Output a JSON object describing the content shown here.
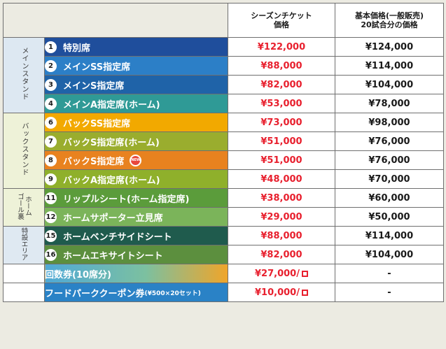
{
  "header": {
    "season_ticket": [
      "シーズンチケット",
      "価格"
    ],
    "base_price": [
      "基本価格(一般販売)",
      "20試合分の価格"
    ]
  },
  "groups": {
    "main": "メインスタンド",
    "back": "バックスタンド",
    "goal": "ホーム\nゴール裏",
    "tokusetsu": "特設エリア"
  },
  "rows": [
    {
      "num": "1",
      "seat": "特別席",
      "season": "¥122,000",
      "base": "¥124,000"
    },
    {
      "num": "2",
      "seat": "メインSS指定席",
      "season": "¥88,000",
      "base": "¥114,000"
    },
    {
      "num": "3",
      "seat": "メインS指定席",
      "season": "¥82,000",
      "base": "¥104,000"
    },
    {
      "num": "4",
      "seat": "メインA指定席(ホーム)",
      "season": "¥53,000",
      "base": "¥78,000"
    },
    {
      "num": "6",
      "seat": "バックSS指定席",
      "season": "¥73,000",
      "base": "¥98,000"
    },
    {
      "num": "7",
      "seat": "バックS指定席(ホーム)",
      "season": "¥51,000",
      "base": "¥76,000"
    },
    {
      "num": "8",
      "seat": "バックS指定席",
      "season": "¥51,000",
      "base": "¥76,000",
      "badge": "NEW"
    },
    {
      "num": "9",
      "seat": "バックA指定席(ホーム)",
      "season": "¥48,000",
      "base": "¥70,000"
    },
    {
      "num": "11",
      "seat": "リップルシート(ホーム指定席)",
      "season": "¥38,000",
      "base": "¥60,000"
    },
    {
      "num": "12",
      "seat": "ホームサポーター立見席",
      "season": "¥29,000",
      "base": "¥50,000"
    },
    {
      "num": "15",
      "seat": "ホームベンチサイドシート",
      "season": "¥88,000",
      "base": "¥114,000"
    },
    {
      "num": "16",
      "seat": "ホームエキサイトシート",
      "season": "¥82,000",
      "base": "¥104,000"
    }
  ],
  "extras": [
    {
      "label": "回数券(10席分)",
      "season": "¥27,000/",
      "base": "-"
    },
    {
      "label": "フードパーククーポン券",
      "label_small": "(¥500×20セット)",
      "season": "¥10,000/",
      "base": "-"
    }
  ],
  "colors": {
    "price_red": "#e8202e",
    "border": "#6f6f6f"
  }
}
